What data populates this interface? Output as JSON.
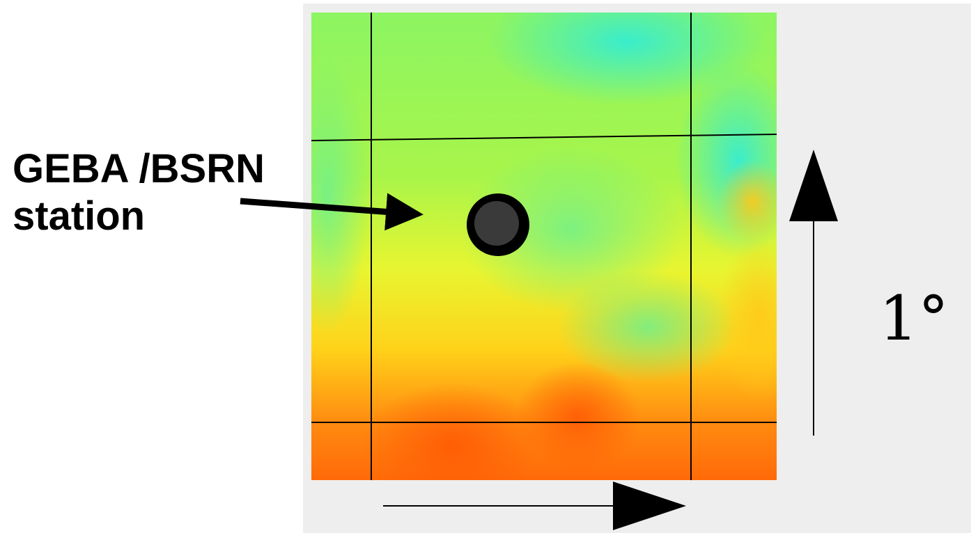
{
  "annotation": {
    "lines": [
      "GEBA /BSRN",
      "station"
    ]
  },
  "scale": {
    "label": "1°"
  }
}
